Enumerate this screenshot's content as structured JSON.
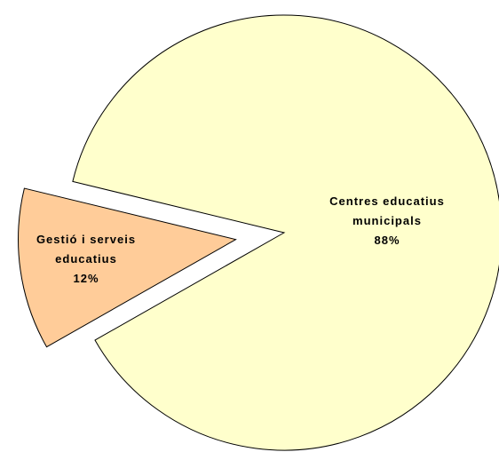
{
  "chart_data": {
    "type": "pie",
    "categories": [
      "Gestió i serveis educatius",
      "Centres educatius municipals"
    ],
    "values": [
      12,
      88
    ],
    "value_labels": [
      "12%",
      "88%"
    ],
    "colors": [
      "#FFCC99",
      "#FFFFCC"
    ]
  }
}
